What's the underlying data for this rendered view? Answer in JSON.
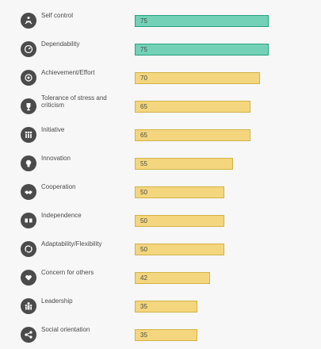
{
  "chart_data": {
    "type": "bar",
    "orientation": "horizontal",
    "categories": [
      "Self control",
      "Dependability",
      "Achievement/Effort",
      "Tolerance of stress and criticism",
      "Initiative",
      "Innovation",
      "Cooperation",
      "Independence",
      "Adaptability/Flexibility",
      "Concern for others",
      "Leadership",
      "Social orientation"
    ],
    "values": [
      75,
      75,
      70,
      65,
      65,
      55,
      50,
      50,
      50,
      42,
      35,
      35
    ],
    "icons": [
      "meditation-icon",
      "gauge-icon",
      "target-icon",
      "trophy-icon",
      "people-icon",
      "lightbulb-icon",
      "handshake-icon",
      "independence-icon",
      "adaptability-icon",
      "heart-hands-icon",
      "leader-icon",
      "network-icon"
    ],
    "bar_colors": [
      "#72d1b6",
      "#72d1b6",
      "#f3d67d",
      "#f3d67d",
      "#f3d67d",
      "#f3d67d",
      "#f3d67d",
      "#f3d67d",
      "#f3d67d",
      "#f3d67d",
      "#f3d67d",
      "#f3d67d"
    ],
    "bar_border_colors": [
      "#2aa07f",
      "#2aa07f",
      "#d2b24a",
      "#d2b24a",
      "#d2b24a",
      "#d2b24a",
      "#d2b24a",
      "#d2b24a",
      "#d2b24a",
      "#d2b24a",
      "#d2b24a",
      "#d2b24a"
    ],
    "xlim": [
      0,
      100
    ],
    "grid": false
  }
}
